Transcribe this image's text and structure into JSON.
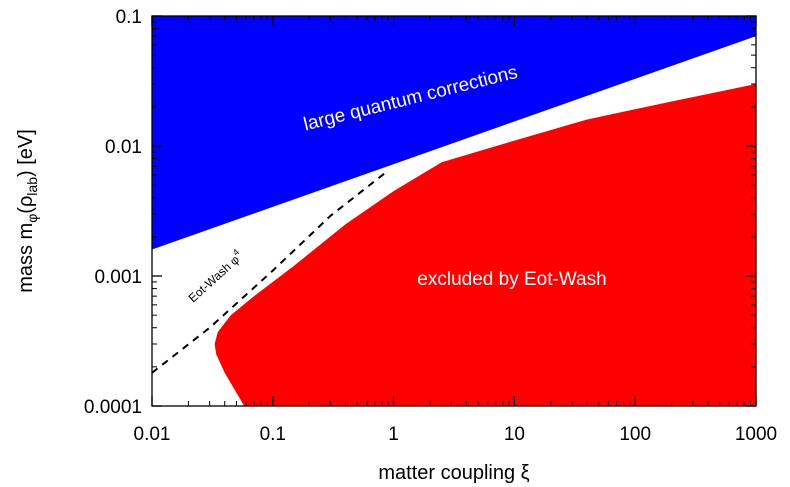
{
  "chart_data": {
    "type": "area",
    "title": "",
    "xlabel": "matter coupling ξ",
    "ylabel_parts": {
      "main": "mass m",
      "sub1": "φ",
      "open": "(ρ",
      "sub2": "lab",
      "close": ") [eV]"
    },
    "x_scale": "log",
    "y_scale": "log",
    "xlim": [
      0.01,
      1000
    ],
    "ylim": [
      0.0001,
      0.1
    ],
    "x_ticks": [
      0.01,
      0.1,
      1,
      10,
      100,
      1000
    ],
    "x_tick_labels": [
      "0.01",
      "0.1",
      "1",
      "10",
      "100",
      "1000"
    ],
    "y_ticks": [
      0.0001,
      0.001,
      0.01,
      0.1
    ],
    "y_tick_labels": [
      "0.0001",
      "0.001",
      "0.01",
      "0.1"
    ],
    "grid": false,
    "legend": "none",
    "series": [
      {
        "label": "large quantum corrections",
        "color": "#0000ff",
        "kind": "region-above",
        "boundary": {
          "x": [
            0.01,
            1000
          ],
          "y": [
            0.0016,
            0.07
          ]
        }
      },
      {
        "label": "excluded by Eot-Wash",
        "color": "#ff0000",
        "kind": "region",
        "boundary": {
          "x": [
            0.058,
            0.04,
            0.034,
            0.033,
            0.035,
            0.045,
            0.07,
            0.15,
            0.4,
            1,
            2.5,
            10,
            40,
            200,
            1000
          ],
          "y": [
            0.0001,
            0.00018,
            0.00025,
            0.0003,
            0.00037,
            0.0005,
            0.0007,
            0.0012,
            0.0025,
            0.0045,
            0.0075,
            0.011,
            0.016,
            0.022,
            0.03
          ]
        }
      },
      {
        "label": "Eot-Wash φ",
        "superscript": "4",
        "color": "#000000",
        "kind": "dashed-line",
        "x": [
          0.01,
          0.03,
          0.1,
          0.3,
          0.85
        ],
        "y": [
          0.00018,
          0.0004,
          0.0011,
          0.0029,
          0.0062
        ]
      }
    ]
  }
}
